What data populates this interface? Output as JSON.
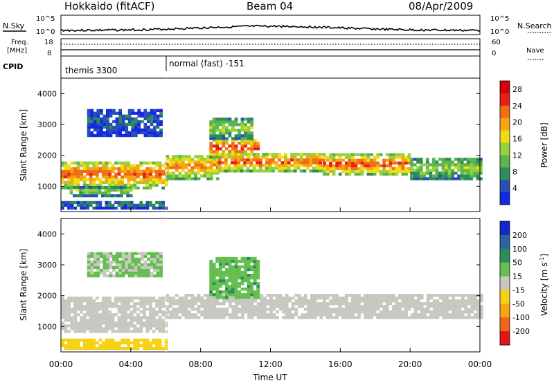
{
  "header": {
    "station": "Hokkaido (fitACF)",
    "beam": "Beam 04",
    "date": "08/Apr/2009"
  },
  "strips": {
    "nsky_label": "N.Sky",
    "nsearch_label": "N.Search",
    "noise_ticks": [
      "10^5",
      "10^0"
    ],
    "freq_label_1": "Freq.",
    "freq_label_2": "[MHz]",
    "freq_ticks": [
      "18",
      "8"
    ],
    "nave_label": "Nave",
    "nave_ticks": [
      "60",
      "0"
    ],
    "cpid_label": "CPID",
    "cpid_segments": [
      "themis 3300",
      "normal (fast) -151"
    ]
  },
  "chart_data": [
    {
      "type": "heatmap",
      "title": "",
      "xlabel": "Time UT",
      "ylabel": "Slant Range [km]",
      "x_ticks": [
        "00:00",
        "04:00",
        "08:00",
        "12:00",
        "16:00",
        "20:00",
        "00:00"
      ],
      "x_range_hours": [
        0,
        24
      ],
      "y_ticks": [
        1000,
        2000,
        3000,
        4000
      ],
      "y_range_km": [
        180,
        4500
      ],
      "colorbar": {
        "label": "Power [dB]",
        "ticks": [
          4,
          8,
          12,
          16,
          20,
          24,
          28
        ],
        "range": [
          0,
          30
        ],
        "colors": [
          "#1428e6",
          "#2850b4",
          "#2d8c5a",
          "#5ab450",
          "#96d23c",
          "#f0dc14",
          "#f5a514",
          "#f06e14",
          "#e61e14",
          "#d2000a"
        ]
      },
      "bands": [
        {
          "t0": 0.0,
          "t1": 6.0,
          "r0": 900,
          "r1": 1800,
          "level": 24
        },
        {
          "t0": 0.5,
          "t1": 4.0,
          "r0": 650,
          "r1": 950,
          "level": 14
        },
        {
          "t0": 6.0,
          "t1": 9.0,
          "r0": 1200,
          "r1": 2000,
          "level": 22
        },
        {
          "t0": 8.5,
          "t1": 11.2,
          "r0": 1900,
          "r1": 2500,
          "level": 26
        },
        {
          "t0": 8.5,
          "t1": 11.0,
          "r0": 2500,
          "r1": 3200,
          "level": 14
        },
        {
          "t0": 9.0,
          "t1": 15.0,
          "r0": 1450,
          "r1": 2050,
          "level": 24
        },
        {
          "t0": 15.0,
          "t1": 20.0,
          "r0": 1350,
          "r1": 2000,
          "level": 25
        },
        {
          "t0": 20.0,
          "t1": 24.0,
          "r0": 1200,
          "r1": 1900,
          "level": 14
        },
        {
          "t0": 1.5,
          "t1": 5.8,
          "r0": 2600,
          "r1": 3500,
          "level": 5
        },
        {
          "t0": 0.0,
          "t1": 6.0,
          "r0": 250,
          "r1": 500,
          "level": 6
        }
      ]
    },
    {
      "type": "heatmap",
      "title": "",
      "xlabel": "Time UT",
      "ylabel": "Slant Range [km]",
      "x_ticks": [
        "00:00",
        "04:00",
        "08:00",
        "12:00",
        "16:00",
        "20:00",
        "00:00"
      ],
      "x_range_hours": [
        0,
        24
      ],
      "y_ticks": [
        1000,
        2000,
        3000,
        4000
      ],
      "y_range_km": [
        180,
        4500
      ],
      "colorbar": {
        "label": "Velocity [m s^-1]",
        "ticks": [
          200,
          100,
          50,
          15,
          -15,
          -50,
          -100,
          -200
        ],
        "range": [
          -250,
          250
        ],
        "colors": [
          "#1428c8",
          "#2d64a0",
          "#2d8c5a",
          "#64be50",
          "#c8c8c0",
          "#f5d214",
          "#f5a514",
          "#f0641e",
          "#e61414"
        ]
      },
      "bands": [
        {
          "t0": 0.0,
          "t1": 6.0,
          "r0": 800,
          "r1": 1900,
          "level": 0
        },
        {
          "t0": 6.0,
          "t1": 24.0,
          "r0": 1250,
          "r1": 2050,
          "level": 0
        },
        {
          "t0": 8.5,
          "t1": 11.2,
          "r0": 1900,
          "r1": 3200,
          "level": 70
        },
        {
          "t0": 1.5,
          "t1": 5.8,
          "r0": 2600,
          "r1": 3400,
          "level": 30
        },
        {
          "t0": 0.0,
          "t1": 6.0,
          "r0": 250,
          "r1": 550,
          "level": -60
        }
      ]
    }
  ],
  "axes": {
    "time_label": "Time UT",
    "range_label": "Slant Range [km]",
    "power_label": "Power [dB]",
    "velocity_label": "Velocity [m s",
    "velocity_exp": "-1",
    "velocity_close": "]"
  }
}
